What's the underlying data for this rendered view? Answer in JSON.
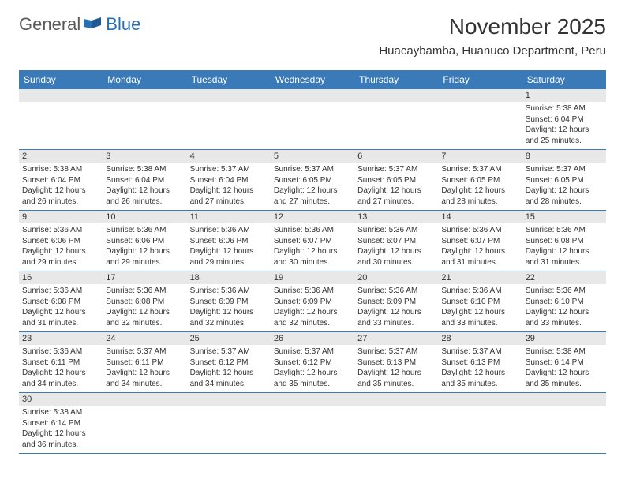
{
  "logo": {
    "text1": "General",
    "text2": "Blue"
  },
  "title": "November 2025",
  "location": "Huacaybamba, Huanuco Department, Peru",
  "colors": {
    "header_bg": "#3a7ab8",
    "header_text": "#ffffff",
    "daynum_bg": "#e8e8e8",
    "border": "#3a7ab8",
    "text": "#333333",
    "logo_gray": "#5a5a5a",
    "logo_blue": "#2a6fb0"
  },
  "day_headers": [
    "Sunday",
    "Monday",
    "Tuesday",
    "Wednesday",
    "Thursday",
    "Friday",
    "Saturday"
  ],
  "weeks": [
    [
      null,
      null,
      null,
      null,
      null,
      null,
      {
        "n": "1",
        "sr": "5:38 AM",
        "ss": "6:04 PM",
        "dl": "12 hours and 25 minutes."
      }
    ],
    [
      {
        "n": "2",
        "sr": "5:38 AM",
        "ss": "6:04 PM",
        "dl": "12 hours and 26 minutes."
      },
      {
        "n": "3",
        "sr": "5:38 AM",
        "ss": "6:04 PM",
        "dl": "12 hours and 26 minutes."
      },
      {
        "n": "4",
        "sr": "5:37 AM",
        "ss": "6:04 PM",
        "dl": "12 hours and 27 minutes."
      },
      {
        "n": "5",
        "sr": "5:37 AM",
        "ss": "6:05 PM",
        "dl": "12 hours and 27 minutes."
      },
      {
        "n": "6",
        "sr": "5:37 AM",
        "ss": "6:05 PM",
        "dl": "12 hours and 27 minutes."
      },
      {
        "n": "7",
        "sr": "5:37 AM",
        "ss": "6:05 PM",
        "dl": "12 hours and 28 minutes."
      },
      {
        "n": "8",
        "sr": "5:37 AM",
        "ss": "6:05 PM",
        "dl": "12 hours and 28 minutes."
      }
    ],
    [
      {
        "n": "9",
        "sr": "5:36 AM",
        "ss": "6:06 PM",
        "dl": "12 hours and 29 minutes."
      },
      {
        "n": "10",
        "sr": "5:36 AM",
        "ss": "6:06 PM",
        "dl": "12 hours and 29 minutes."
      },
      {
        "n": "11",
        "sr": "5:36 AM",
        "ss": "6:06 PM",
        "dl": "12 hours and 29 minutes."
      },
      {
        "n": "12",
        "sr": "5:36 AM",
        "ss": "6:07 PM",
        "dl": "12 hours and 30 minutes."
      },
      {
        "n": "13",
        "sr": "5:36 AM",
        "ss": "6:07 PM",
        "dl": "12 hours and 30 minutes."
      },
      {
        "n": "14",
        "sr": "5:36 AM",
        "ss": "6:07 PM",
        "dl": "12 hours and 31 minutes."
      },
      {
        "n": "15",
        "sr": "5:36 AM",
        "ss": "6:08 PM",
        "dl": "12 hours and 31 minutes."
      }
    ],
    [
      {
        "n": "16",
        "sr": "5:36 AM",
        "ss": "6:08 PM",
        "dl": "12 hours and 31 minutes."
      },
      {
        "n": "17",
        "sr": "5:36 AM",
        "ss": "6:08 PM",
        "dl": "12 hours and 32 minutes."
      },
      {
        "n": "18",
        "sr": "5:36 AM",
        "ss": "6:09 PM",
        "dl": "12 hours and 32 minutes."
      },
      {
        "n": "19",
        "sr": "5:36 AM",
        "ss": "6:09 PM",
        "dl": "12 hours and 32 minutes."
      },
      {
        "n": "20",
        "sr": "5:36 AM",
        "ss": "6:09 PM",
        "dl": "12 hours and 33 minutes."
      },
      {
        "n": "21",
        "sr": "5:36 AM",
        "ss": "6:10 PM",
        "dl": "12 hours and 33 minutes."
      },
      {
        "n": "22",
        "sr": "5:36 AM",
        "ss": "6:10 PM",
        "dl": "12 hours and 33 minutes."
      }
    ],
    [
      {
        "n": "23",
        "sr": "5:36 AM",
        "ss": "6:11 PM",
        "dl": "12 hours and 34 minutes."
      },
      {
        "n": "24",
        "sr": "5:37 AM",
        "ss": "6:11 PM",
        "dl": "12 hours and 34 minutes."
      },
      {
        "n": "25",
        "sr": "5:37 AM",
        "ss": "6:12 PM",
        "dl": "12 hours and 34 minutes."
      },
      {
        "n": "26",
        "sr": "5:37 AM",
        "ss": "6:12 PM",
        "dl": "12 hours and 35 minutes."
      },
      {
        "n": "27",
        "sr": "5:37 AM",
        "ss": "6:13 PM",
        "dl": "12 hours and 35 minutes."
      },
      {
        "n": "28",
        "sr": "5:37 AM",
        "ss": "6:13 PM",
        "dl": "12 hours and 35 minutes."
      },
      {
        "n": "29",
        "sr": "5:38 AM",
        "ss": "6:14 PM",
        "dl": "12 hours and 35 minutes."
      }
    ],
    [
      {
        "n": "30",
        "sr": "5:38 AM",
        "ss": "6:14 PM",
        "dl": "12 hours and 36 minutes."
      },
      null,
      null,
      null,
      null,
      null,
      null
    ]
  ],
  "labels": {
    "sunrise": "Sunrise:",
    "sunset": "Sunset:",
    "daylight": "Daylight:"
  }
}
